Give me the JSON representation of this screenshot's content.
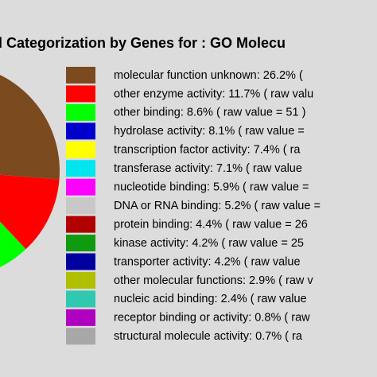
{
  "chart_data": {
    "type": "pie",
    "title": "l Categorization by Genes for : GO Molecu",
    "categories": [
      "molecular function unknown: 26.2% ( ",
      "other enzyme activity: 11.7% ( raw valu",
      "other binding: 8.6% ( raw value = 51 )",
      "hydrolase activity: 8.1% ( raw value =",
      "transcription factor activity: 7.4% ( ra",
      "transferase activity: 7.1% ( raw value",
      "nucleotide binding: 5.9% ( raw value =",
      "DNA or RNA binding: 5.2% ( raw value =",
      "protein binding: 4.4% ( raw value = 26",
      "kinase activity: 4.2% ( raw value = 25",
      "transporter activity: 4.2% ( raw value",
      "other molecular functions: 2.9% ( raw v",
      "nucleic acid binding: 2.4% ( raw value",
      "receptor binding or activity: 0.8% ( raw",
      "structural molecule activity: 0.7% ( ra"
    ],
    "values": [
      26.2,
      11.7,
      8.6,
      8.1,
      7.4,
      7.1,
      5.9,
      5.2,
      4.4,
      4.2,
      4.2,
      2.9,
      2.4,
      0.8,
      0.7
    ],
    "colors": [
      "#7b4a1f",
      "#ff0000",
      "#00ff00",
      "#0000cc",
      "#ffff00",
      "#00e5ee",
      "#ff00ff",
      "#c8c8c8",
      "#b00000",
      "#109a10",
      "#0000a0",
      "#b0c000",
      "#30c8b0",
      "#b000c0",
      "#a8a8a8"
    ]
  }
}
